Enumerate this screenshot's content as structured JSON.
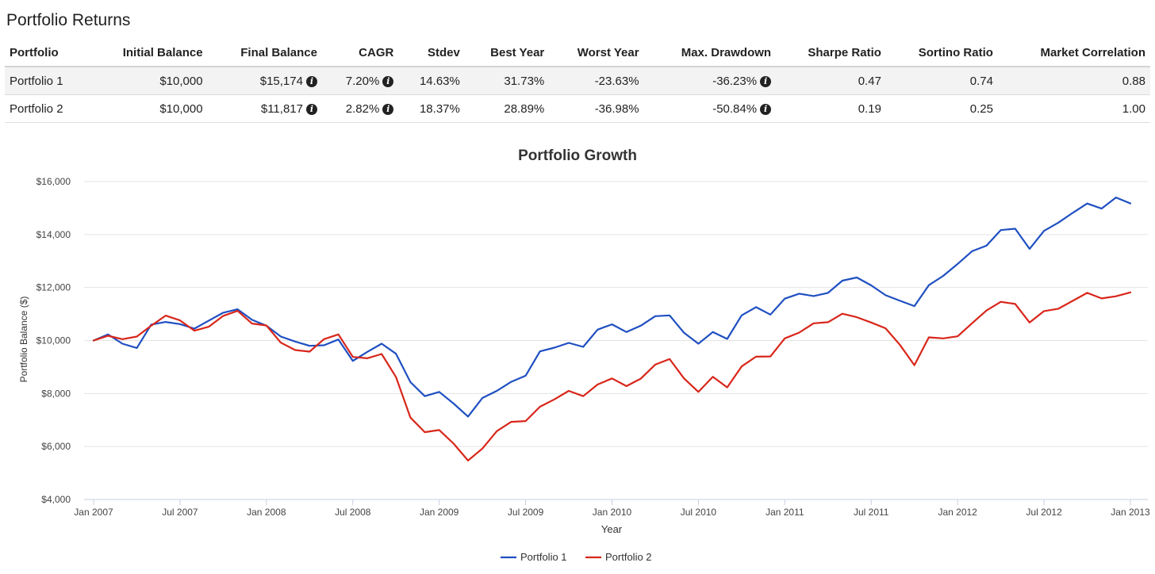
{
  "page": {
    "title": "Portfolio Returns"
  },
  "table": {
    "headers": [
      "Portfolio",
      "Initial Balance",
      "Final Balance",
      "CAGR",
      "Stdev",
      "Best Year",
      "Worst Year",
      "Max. Drawdown",
      "Sharpe Ratio",
      "Sortino Ratio",
      "Market Correlation"
    ],
    "info_columns": [
      2,
      3,
      7
    ],
    "info_icon": "info-circle-icon",
    "rows": [
      [
        "Portfolio 1",
        "$10,000",
        "$15,174",
        "7.20%",
        "14.63%",
        "31.73%",
        "-23.63%",
        "-36.23%",
        "0.47",
        "0.74",
        "0.88"
      ],
      [
        "Portfolio 2",
        "$10,000",
        "$11,817",
        "2.82%",
        "18.37%",
        "28.89%",
        "-36.98%",
        "-50.84%",
        "0.19",
        "0.25",
        "1.00"
      ]
    ]
  },
  "chart_data": {
    "type": "line",
    "title": "Portfolio Growth",
    "xlabel": "Year",
    "ylabel": "Portfolio Balance ($)",
    "ylim": [
      4000,
      16000
    ],
    "yticks": [
      4000,
      6000,
      8000,
      10000,
      12000,
      14000,
      16000
    ],
    "ytick_labels": [
      "$4,000",
      "$6,000",
      "$8,000",
      "$10,000",
      "$12,000",
      "$14,000",
      "$16,000"
    ],
    "xticks": [
      "2007-01",
      "2007-07",
      "2008-01",
      "2008-07",
      "2009-01",
      "2009-07",
      "2010-01",
      "2010-07",
      "2011-01",
      "2011-07",
      "2012-01",
      "2012-07",
      "2013-01"
    ],
    "xtick_labels": [
      "Jan 2007",
      "Jul 2007",
      "Jan 2008",
      "Jul 2008",
      "Jan 2009",
      "Jul 2009",
      "Jan 2010",
      "Jul 2010",
      "Jan 2011",
      "Jul 2011",
      "Jan 2012",
      "Jul 2012",
      "Jan 2013"
    ],
    "x_start": "2007-01",
    "grid": true,
    "legend": "bottom-center",
    "series": [
      {
        "name": "Portfolio 1",
        "color": "#1f4fc1",
        "values": [
          10000,
          10230,
          9880,
          9720,
          10600,
          10700,
          10620,
          10450,
          10750,
          11050,
          11180,
          10780,
          10560,
          10150,
          9960,
          9800,
          9820,
          10040,
          9230,
          9570,
          9880,
          9500,
          8430,
          7900,
          8060,
          7620,
          7130,
          7830,
          8100,
          8440,
          8670,
          9590,
          9730,
          9910,
          9760,
          10410,
          10610,
          10320,
          10560,
          10920,
          10950,
          10290,
          9880,
          10320,
          10060,
          10950,
          11260,
          10980,
          11580,
          11770,
          11680,
          11800,
          12260,
          12380,
          12080,
          11710,
          11500,
          11300,
          12090,
          12440,
          12890,
          13370,
          13580,
          14170,
          14220,
          13460,
          14140,
          14450,
          14820,
          15170,
          14980,
          15400,
          15174
        ]
      },
      {
        "name": "Portfolio 2",
        "color": "#d8261a",
        "values": [
          10000,
          10180,
          10050,
          10150,
          10560,
          10940,
          10760,
          10370,
          10520,
          10930,
          11120,
          10640,
          10570,
          9920,
          9640,
          9580,
          10050,
          10230,
          9380,
          9330,
          9490,
          8620,
          7090,
          6540,
          6620,
          6110,
          5470,
          5920,
          6580,
          6930,
          6960,
          7500,
          7780,
          8100,
          7900,
          8340,
          8570,
          8280,
          8560,
          9090,
          9300,
          8570,
          8060,
          8630,
          8230,
          9020,
          9390,
          9400,
          10080,
          10300,
          10650,
          10690,
          11010,
          10880,
          10680,
          10460,
          9830,
          9070,
          10120,
          10080,
          10160,
          10650,
          11130,
          11460,
          11380,
          10680,
          11110,
          11200,
          11500,
          11800,
          11590,
          11670,
          11817
        ]
      }
    ]
  }
}
